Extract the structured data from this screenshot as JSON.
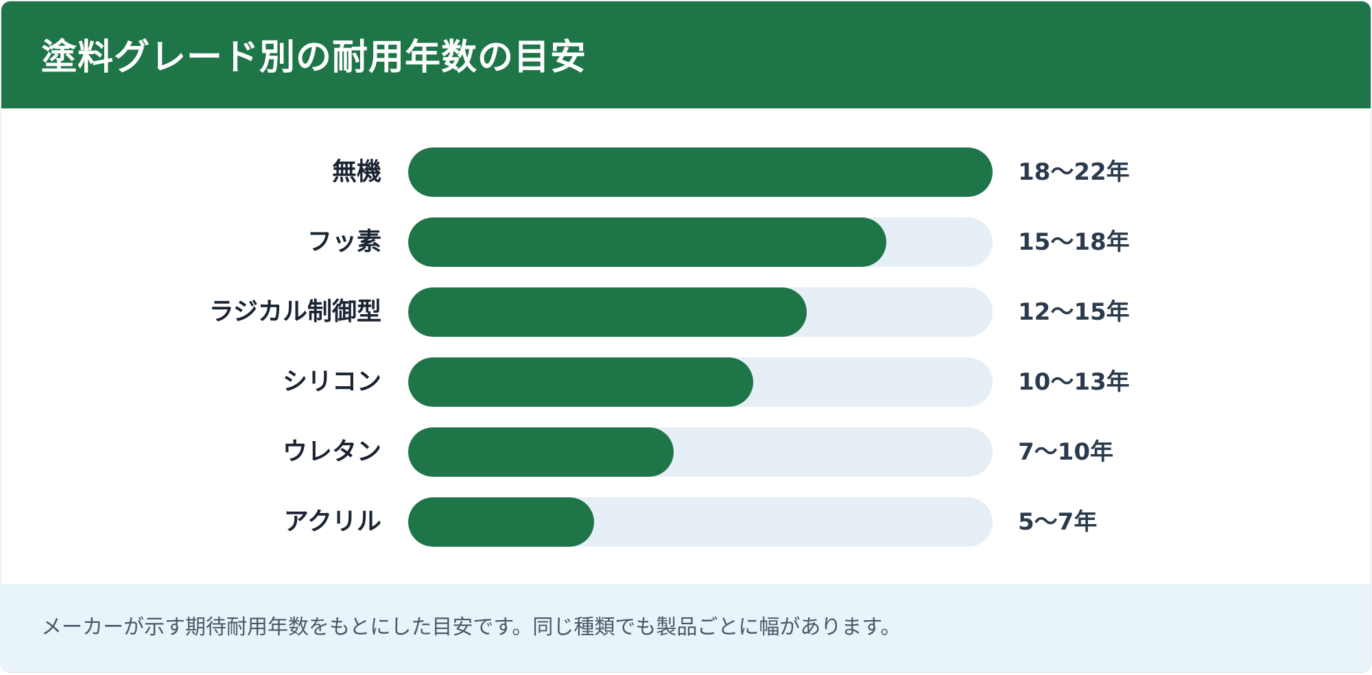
{
  "header": {
    "title": "塗料グレード別の耐用年数の目安"
  },
  "chart_data": {
    "type": "bar",
    "orientation": "horizontal",
    "title": "塗料グレード別の耐用年数の目安",
    "xlabel": "",
    "ylabel": "",
    "grid": false,
    "categories": [
      "無機",
      "フッ素",
      "ラジカル制御型",
      "シリコン",
      "ウレタン",
      "アクリル"
    ],
    "value_labels": [
      "18〜22年",
      "15〜18年",
      "12〜15年",
      "10〜13年",
      "7〜10年",
      "5〜7年"
    ],
    "ranges": [
      [
        18,
        22
      ],
      [
        15,
        18
      ],
      [
        12,
        15
      ],
      [
        10,
        13
      ],
      [
        7,
        10
      ],
      [
        5,
        7
      ]
    ],
    "values": [
      22,
      18,
      15,
      13,
      10,
      7
    ],
    "xlim": [
      0,
      22
    ],
    "colors": {
      "bar": "#1e7547",
      "track": "#e5eff5"
    }
  },
  "footer": {
    "note": "メーカーが示す期待耐用年数をもとにした目安です。同じ種類でも製品ごとに幅があります。"
  }
}
